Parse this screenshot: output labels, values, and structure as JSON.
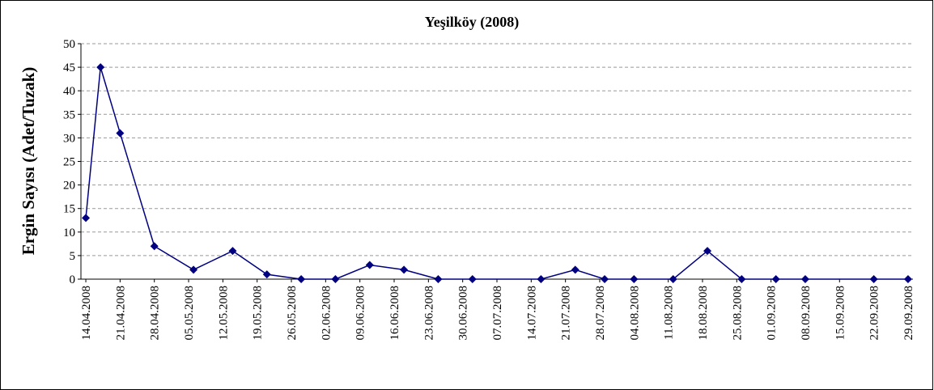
{
  "chart_data": {
    "type": "line",
    "title": "Yeşilköy (2008)",
    "y_label": "Ergin Sayısı (Adet/Tuzak)",
    "x": [
      "14.04.2008",
      "17.04.2008",
      "21.04.2008",
      "28.04.2008",
      "06.05.2008",
      "14.05.2008",
      "21.05.2008",
      "28.05.2008",
      "04.06.2008",
      "11.06.2008",
      "18.06.2008",
      "25.06.2008",
      "02.07.2008",
      "16.07.2008",
      "23.07.2008",
      "29.07.2008",
      "04.08.2008",
      "12.08.2008",
      "19.08.2008",
      "26.08.2008",
      "02.09.2008",
      "08.09.2008",
      "22.09.2008",
      "29.09.2008"
    ],
    "values": [
      13,
      45,
      31,
      7,
      2,
      6,
      1,
      0,
      0,
      3,
      2,
      0,
      0,
      0,
      2,
      0,
      0,
      0,
      6,
      0,
      0,
      0,
      0,
      0
    ],
    "color": "#000080",
    "xlim": [
      "13.04.2008",
      "30.09.2008"
    ],
    "xticks": [
      "14.04.2008",
      "21.04.2008",
      "28.04.2008",
      "05.05.2008",
      "12.05.2008",
      "19.05.2008",
      "26.05.2008",
      "02.06.2008",
      "09.06.2008",
      "16.06.2008",
      "23.06.2008",
      "30.06.2008",
      "07.07.2008",
      "14.07.2008",
      "21.07.2008",
      "28.07.2008",
      "04.08.2008",
      "11.08.2008",
      "18.08.2008",
      "25.08.2008",
      "01.09.2008",
      "08.09.2008",
      "15.09.2008",
      "22.09.2008",
      "29.09.2008"
    ],
    "ylim": [
      0,
      50
    ],
    "yticks": [
      0,
      5,
      10,
      15,
      20,
      25,
      30,
      35,
      40,
      45,
      50
    ],
    "grid": true
  }
}
